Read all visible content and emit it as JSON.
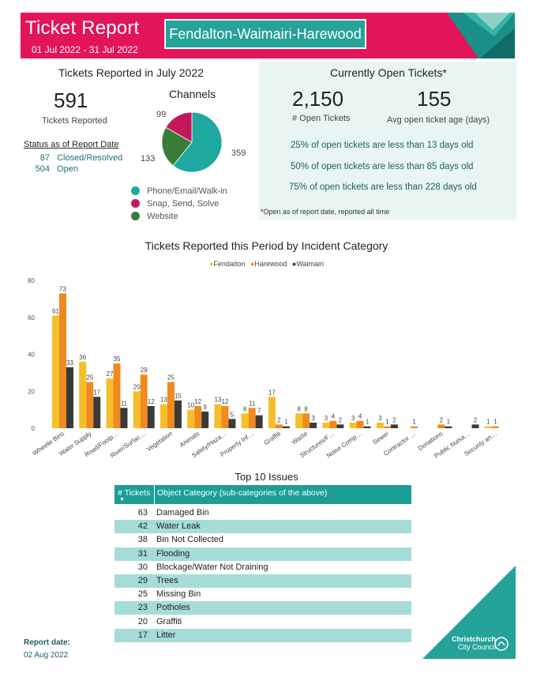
{
  "header": {
    "title": "Ticket Report",
    "date_range": "01 Jul 2022 - 31 Jul 2022",
    "ward": "Fendalton-Waimairi-Harewood",
    "bg_color": "#e2145a",
    "ward_color": "#25a399"
  },
  "reported": {
    "heading": "Tickets Reported in July 2022",
    "count": "591",
    "count_label": "Tickets Reported",
    "status_heading": "Status as of Report Date",
    "status": [
      {
        "value": "87",
        "label": "Closed/Resolved"
      },
      {
        "value": "504",
        "label": "Open"
      }
    ]
  },
  "channels": {
    "heading": "Channels",
    "slices": [
      {
        "label": "Phone/Email/Walk-in",
        "value": 359,
        "color": "#1ea89f"
      },
      {
        "label": "Snap, Send, Solve",
        "value": 99,
        "color": "#c2185b"
      },
      {
        "label": "Website",
        "value": 133,
        "color": "#3a7d3a"
      }
    ],
    "labels": {
      "phone": "359",
      "snap": "99",
      "web": "133"
    }
  },
  "open": {
    "heading": "Currently Open Tickets*",
    "count": "2,150",
    "count_label": "# Open Tickets",
    "age": "155",
    "age_label": "Avg open ticket age (days)",
    "lines": [
      "25% of open tickets are less than 13 days old",
      "50% of open tickets are less than 85 days old",
      "75% of open tickets are less than 228 days old"
    ],
    "note": "*Open as of report date, reported all time"
  },
  "chart_data": {
    "type": "bar",
    "title": "Tickets Reported this Period by Incident Category",
    "categories": [
      "Wheelie Bins",
      "Water Supply",
      "Road/Footp…",
      "River/Surfac…",
      "Vegetation",
      "Animals",
      "Safety/Haza…",
      "Property Inf…",
      "Graffiti",
      "Waste",
      "Structures/F…",
      "Noise Comp…",
      "Sewer",
      "Contractor …",
      "Donations",
      "Public Nuisa…",
      "Security an…"
    ],
    "series": [
      {
        "name": "Fendalton",
        "color": "#f5bf2a",
        "values": [
          61,
          36,
          27,
          20,
          13,
          10,
          13,
          8,
          17,
          8,
          3,
          3,
          3,
          null,
          null,
          null,
          1
        ]
      },
      {
        "name": "Harewood",
        "color": "#f08a1c",
        "values": [
          73,
          25,
          35,
          29,
          25,
          12,
          12,
          11,
          2,
          8,
          4,
          4,
          1,
          1,
          2,
          null,
          1
        ]
      },
      {
        "name": "Waimairi",
        "color": "#3a3a3a",
        "values": [
          33,
          17,
          11,
          12,
          15,
          9,
          5,
          7,
          1,
          3,
          2,
          1,
          2,
          null,
          1,
          2,
          null
        ]
      }
    ],
    "ylim": [
      0,
      80
    ],
    "yticks": [
      0,
      20,
      40,
      60,
      80
    ],
    "legend_position": "top-center"
  },
  "top10": {
    "heading": "Top 10 Issues",
    "col_count": "# Tickets",
    "col_category": "Object Category (sub-categories of the above)",
    "rows": [
      {
        "n": "63",
        "c": "Damaged Bin"
      },
      {
        "n": "42",
        "c": "Water Leak"
      },
      {
        "n": "38",
        "c": "Bin Not Collected"
      },
      {
        "n": "31",
        "c": "Flooding"
      },
      {
        "n": "30",
        "c": "Blockage/Water Not Draining"
      },
      {
        "n": "29",
        "c": "Trees"
      },
      {
        "n": "25",
        "c": "Missing Bin"
      },
      {
        "n": "23",
        "c": "Potholes"
      },
      {
        "n": "20",
        "c": "Graffiti"
      },
      {
        "n": "17",
        "c": "Litter"
      }
    ]
  },
  "footer": {
    "report_date_label": "Report date:",
    "report_date": "02 Aug 2022",
    "logo_line1": "Christchurch",
    "logo_line2": "City Council"
  }
}
